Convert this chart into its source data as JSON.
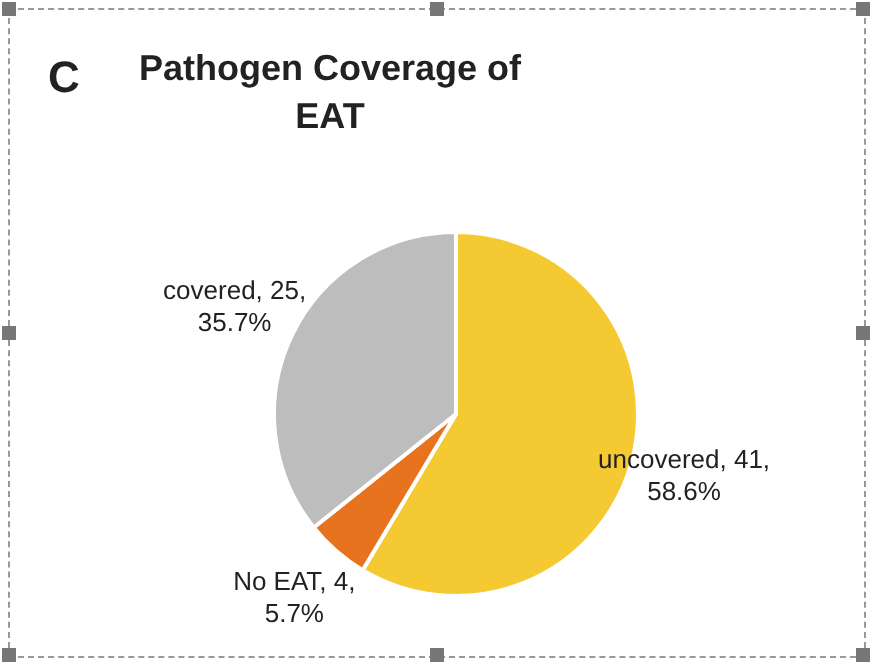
{
  "chart_data": {
    "type": "pie",
    "title": "Pathogen Coverage of EAT",
    "annotations": [
      "C"
    ],
    "categories": [
      "uncovered",
      "No EAT",
      "covered"
    ],
    "values": [
      41,
      4,
      25
    ],
    "colors": [
      "#f5c932",
      "#e8731e",
      "#bdbdbd"
    ],
    "value_labels": [
      "41, 58.6%",
      "4, 5.7%",
      "25, 35.7%"
    ],
    "legend": false
  }
}
